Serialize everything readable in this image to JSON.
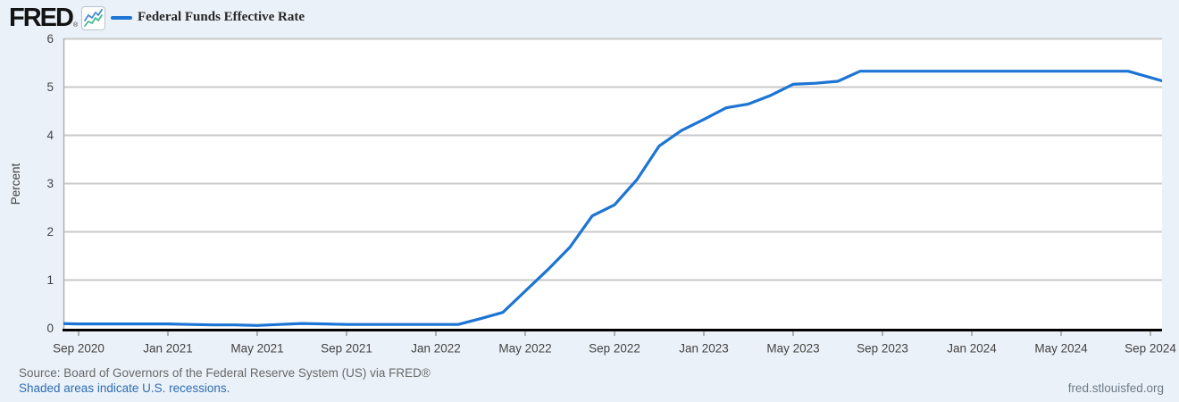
{
  "brand": {
    "logo_text": "FRED",
    "registered_mark": "®"
  },
  "legend": {
    "series_label": "Federal Funds Effective Rate",
    "series_color": "#1c74d4"
  },
  "chart_data": {
    "type": "line",
    "title": "Federal Funds Effective Rate",
    "ylabel": "Percent",
    "ylim": [
      0,
      6
    ],
    "yticks": [
      0,
      1,
      2,
      3,
      4,
      5,
      6
    ],
    "x_tick_labels": [
      "Sep 2020",
      "Jan 2021",
      "May 2021",
      "Sep 2021",
      "Jan 2022",
      "May 2022",
      "Sep 2022",
      "Jan 2023",
      "May 2023",
      "Sep 2023",
      "Jan 2024",
      "May 2024",
      "Sep 2024"
    ],
    "grid": true,
    "legend_position": "top-left",
    "series": [
      {
        "name": "Federal Funds Effective Rate",
        "color": "#1c74d4",
        "x": [
          "2020-08",
          "2020-09",
          "2020-10",
          "2020-11",
          "2020-12",
          "2021-01",
          "2021-02",
          "2021-03",
          "2021-04",
          "2021-05",
          "2021-06",
          "2021-07",
          "2021-08",
          "2021-09",
          "2021-10",
          "2021-11",
          "2021-12",
          "2022-01",
          "2022-02",
          "2022-03",
          "2022-04",
          "2022-05",
          "2022-06",
          "2022-07",
          "2022-08",
          "2022-09",
          "2022-10",
          "2022-11",
          "2022-12",
          "2023-01",
          "2023-02",
          "2023-03",
          "2023-04",
          "2023-05",
          "2023-06",
          "2023-07",
          "2023-08",
          "2023-09",
          "2023-10",
          "2023-11",
          "2023-12",
          "2024-01",
          "2024-02",
          "2024-03",
          "2024-04",
          "2024-05",
          "2024-06",
          "2024-07",
          "2024-08",
          "2024-09"
        ],
        "values": [
          0.1,
          0.09,
          0.09,
          0.09,
          0.09,
          0.09,
          0.08,
          0.07,
          0.07,
          0.06,
          0.08,
          0.1,
          0.09,
          0.08,
          0.08,
          0.08,
          0.08,
          0.08,
          0.08,
          0.2,
          0.33,
          0.77,
          1.21,
          1.68,
          2.33,
          2.56,
          3.08,
          3.78,
          4.1,
          4.33,
          4.57,
          4.65,
          4.83,
          5.06,
          5.08,
          5.12,
          5.33,
          5.33,
          5.33,
          5.33,
          5.33,
          5.33,
          5.33,
          5.33,
          5.33,
          5.33,
          5.33,
          5.33,
          5.33,
          5.13
        ]
      }
    ]
  },
  "footer": {
    "source": "Source: Board of Governors of the Federal Reserve System (US) via FRED®",
    "recession_note": "Shaded areas indicate U.S. recessions.",
    "site": "fred.stlouisfed.org"
  },
  "colors": {
    "background": "#eaf1f8",
    "plot_background": "#ffffff",
    "gridline": "#c9c9c9",
    "plot_border": "#b0b0b0",
    "axis": "#000000",
    "tick": "#999999",
    "tick_label": "#444444",
    "source_text": "#696969",
    "link": "#2f6eb3",
    "site_text": "#6e7b87",
    "icon_blue": "#4b8bd4",
    "icon_green": "#46b98c"
  }
}
